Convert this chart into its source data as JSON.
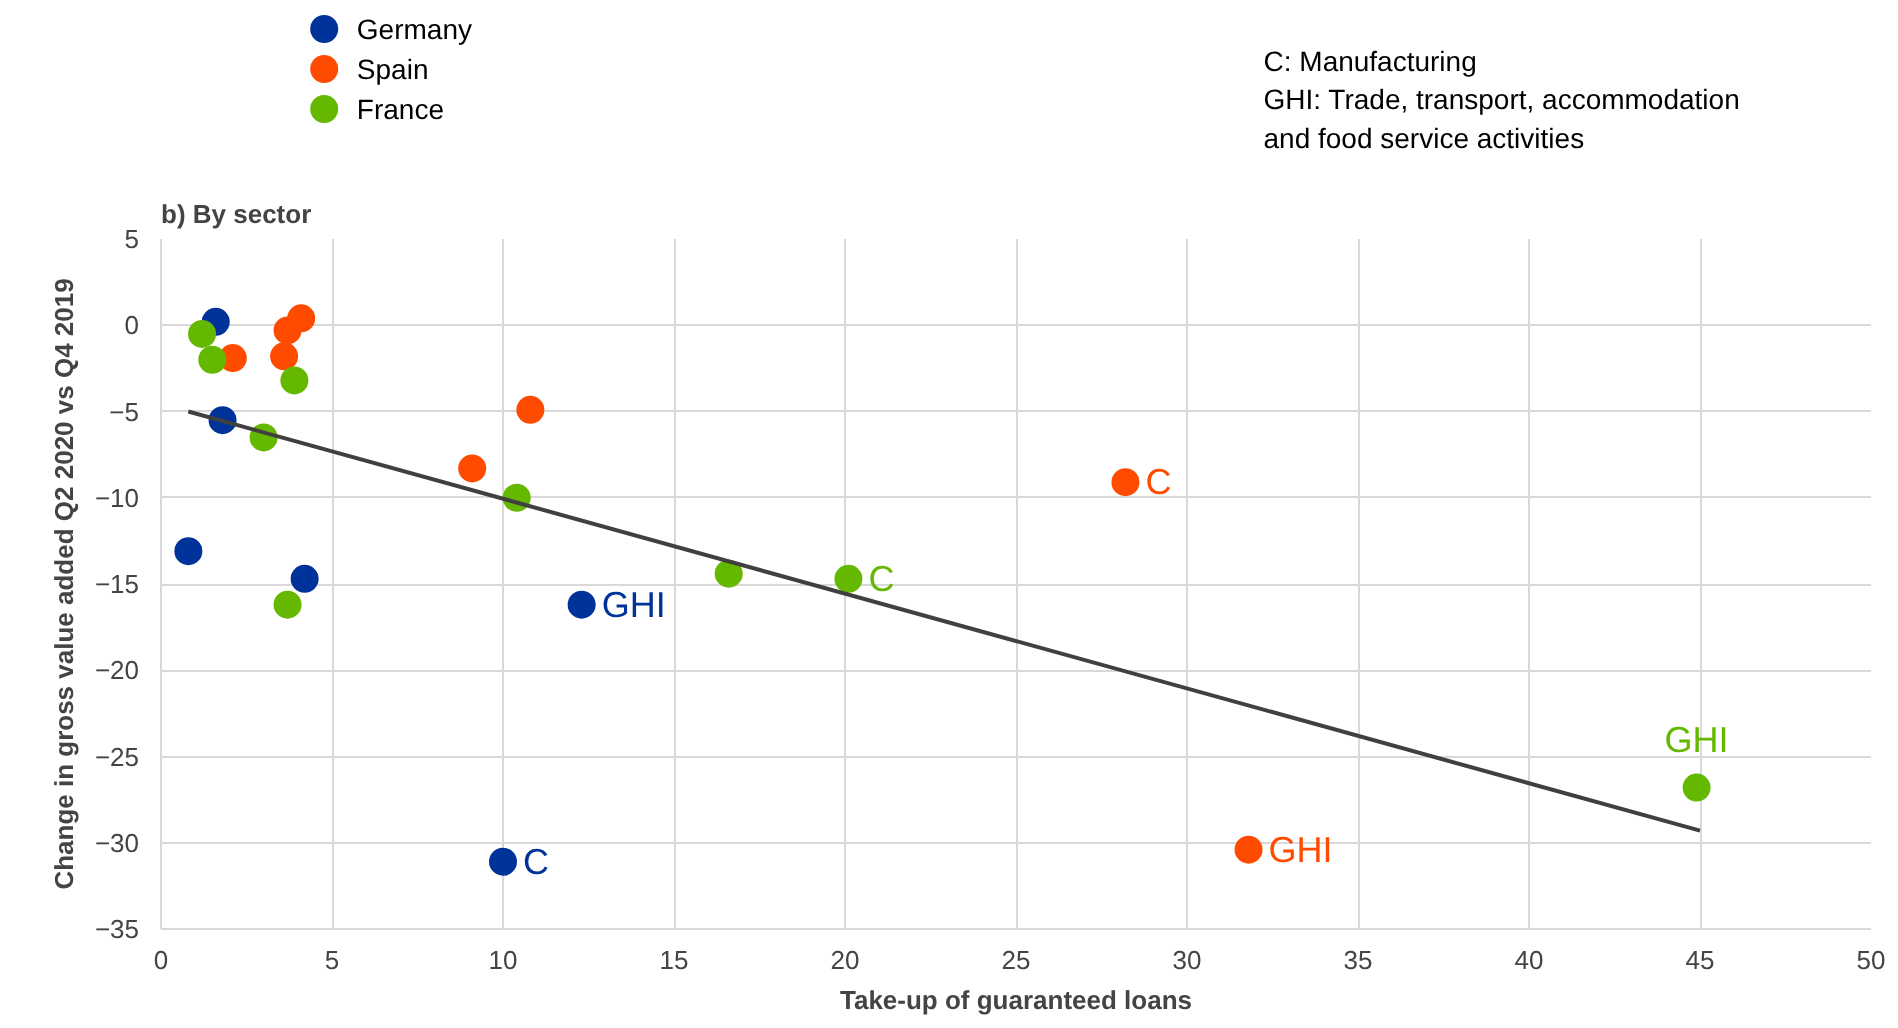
{
  "chart_data": {
    "type": "scatter",
    "title": "b) By sector",
    "xlabel": "Take-up of guaranteed loans",
    "ylabel": "Change in gross value added Q2 2020 vs Q4 2019",
    "xlim": [
      0,
      50
    ],
    "xticks": [
      0,
      5,
      10,
      15,
      20,
      25,
      30,
      35,
      40,
      45,
      50
    ],
    "ylim": [
      -35,
      5
    ],
    "yticks": [
      -35,
      -30,
      -25,
      -20,
      -15,
      -10,
      -5,
      0,
      5
    ],
    "grid": true,
    "legend": "top left",
    "marker": "circle",
    "series": [
      {
        "name": "Germany",
        "color": "#003399",
        "x": [
          1.6,
          1.8,
          0.8,
          4.2,
          12.3,
          10.0
        ],
        "values": [
          0.2,
          -5.5,
          -13.1,
          -14.7,
          -16.2,
          -31.1
        ]
      },
      {
        "name": "Spain",
        "color": "#ff4b00",
        "x": [
          2.1,
          3.7,
          4.1,
          3.6,
          9.1,
          10.8,
          28.2,
          31.8
        ],
        "values": [
          -1.9,
          -0.3,
          0.4,
          -1.8,
          -8.3,
          -4.9,
          -9.1,
          -30.4
        ]
      },
      {
        "name": "France",
        "color": "#65b800",
        "x": [
          1.2,
          1.5,
          3.9,
          3.0,
          3.7,
          10.4,
          16.6,
          20.1,
          44.9
        ],
        "values": [
          -0.5,
          -2.0,
          -3.2,
          -6.5,
          -16.2,
          -10.0,
          -14.4,
          -14.7,
          -26.8
        ]
      },
      {
        "type": "line",
        "marker": "none",
        "color": "#404040",
        "x": [
          0.8,
          45.0
        ],
        "values": [
          -5.0,
          -29.3
        ]
      }
    ],
    "annotations": [
      {
        "text": "GHI",
        "x": 12.3,
        "y": -16.2
      },
      {
        "text": "C",
        "x": 10.0,
        "y": -31.1
      },
      {
        "text": "C",
        "x": 28.2,
        "y": -9.1
      },
      {
        "text": "GHI",
        "x": 31.8,
        "y": -30.4
      },
      {
        "text": "C",
        "x": 20.1,
        "y": -14.7
      },
      {
        "text": "GHI",
        "x": 44.9,
        "y": -26.8
      },
      "C: Manufacturing\nGHI: Trade, transport, accommodation\nand food service activities"
    ]
  }
}
